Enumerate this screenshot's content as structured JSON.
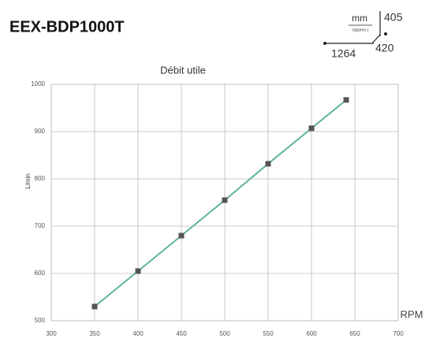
{
  "header": {
    "title": "EEX-BDP1000T"
  },
  "dimensions": {
    "unit": "mm",
    "note": "(approx.)",
    "height": 405,
    "depth": 420,
    "width": 1264
  },
  "chart_data": {
    "type": "line",
    "title": "Débit utile",
    "x_label": "RPM",
    "y_label": "L/min",
    "x": [
      350,
      400,
      450,
      500,
      550,
      600,
      640
    ],
    "values": [
      530,
      605,
      680,
      755,
      832,
      907,
      967
    ],
    "color": "#5fb3a0",
    "marker_color": "#555555",
    "xlim": [
      300,
      700
    ],
    "xticks": [
      300,
      350,
      400,
      450,
      500,
      550,
      600,
      650,
      700
    ],
    "ylim": [
      500,
      1000
    ],
    "yticks": [
      500,
      600,
      700,
      800,
      900,
      1000
    ],
    "grid": true
  }
}
